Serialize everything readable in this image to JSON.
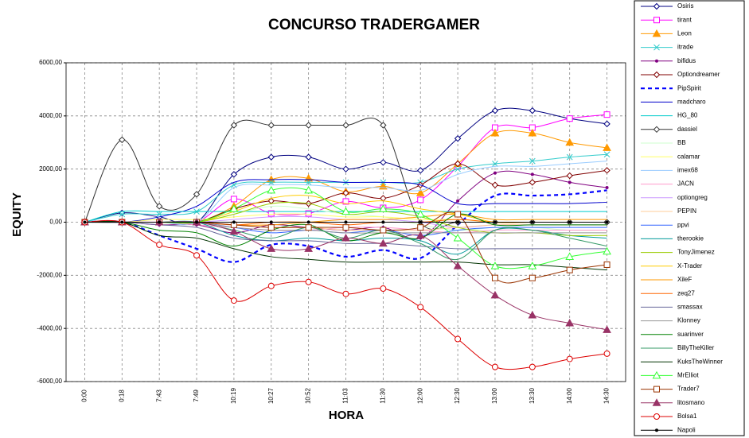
{
  "chart_data": {
    "type": "line",
    "title": "CONCURSO TRADERGAMER",
    "x_label": "HORA",
    "y_label": "EQUITY",
    "categories": [
      "0:00",
      "0:18",
      "7:43",
      "7:49",
      "10:19",
      "10:27",
      "10:52",
      "11:03",
      "11:30",
      "12:00",
      "12:30",
      "13:00",
      "13:30",
      "14:00",
      "14:30"
    ],
    "ylim": [
      -6000,
      6000
    ],
    "yticks": [
      {
        "value": -6000,
        "label": "-6000,00"
      },
      {
        "value": -4000,
        "label": "-4000,00"
      },
      {
        "value": -2000,
        "label": "-2000,00"
      },
      {
        "value": 0,
        "label": "0,00"
      },
      {
        "value": 2000,
        "label": "2000,00"
      },
      {
        "value": 4000,
        "label": "4000,00"
      },
      {
        "value": 6000,
        "label": "6000,00"
      }
    ],
    "grid": true,
    "smooth": true,
    "legend": "right",
    "series": [
      {
        "name": "Osiris",
        "color": "#000080",
        "marker": "diamond",
        "values": [
          0,
          350,
          200,
          0,
          1800,
          2450,
          2450,
          2000,
          2250,
          1950,
          3150,
          4200,
          4200,
          3900,
          3700
        ]
      },
      {
        "name": "tirant",
        "color": "#ff00ff",
        "marker": "square",
        "values": [
          0,
          0,
          0,
          0,
          870,
          330,
          330,
          780,
          540,
          840,
          2100,
          3560,
          3560,
          3900,
          4050
        ]
      },
      {
        "name": "Leon",
        "color": "#ff9900",
        "marker": "triangle",
        "values": [
          0,
          0,
          0,
          0,
          600,
          1600,
          1650,
          1150,
          1350,
          1100,
          2200,
          3350,
          3350,
          3000,
          2800
        ]
      },
      {
        "name": "itrade",
        "color": "#33cccc",
        "marker": "x",
        "values": [
          0,
          300,
          300,
          400,
          1400,
          1500,
          1500,
          1500,
          1500,
          1500,
          2000,
          2200,
          2300,
          2450,
          2550
        ]
      },
      {
        "name": "bifidus",
        "color": "#800080",
        "marker": "dot",
        "values": [
          0,
          0,
          -100,
          -100,
          -400,
          -100,
          -200,
          -300,
          -200,
          -600,
          800,
          1850,
          1800,
          1500,
          1300
        ]
      },
      {
        "name": "Optiondreamer",
        "color": "#800000",
        "marker": "diamond",
        "values": [
          0,
          0,
          0,
          0,
          500,
          800,
          700,
          1100,
          900,
          1400,
          2200,
          1400,
          1500,
          1750,
          1950
        ]
      },
      {
        "name": "PipSpirit",
        "color": "#0000ff",
        "dash": true,
        "values": [
          0,
          0,
          -500,
          -1000,
          -1500,
          -850,
          -900,
          -1300,
          -1050,
          -1350,
          -100,
          1000,
          1000,
          1050,
          1200
        ]
      },
      {
        "name": "madcharo",
        "color": "#0000cc",
        "values": [
          0,
          0,
          200,
          600,
          1500,
          1600,
          1600,
          1500,
          1500,
          1400,
          700,
          700,
          700,
          700,
          750
        ]
      },
      {
        "name": "HG_80",
        "color": "#00cccc",
        "values": [
          0,
          400,
          400,
          400,
          400,
          400,
          400,
          400,
          400,
          400,
          400,
          400,
          400,
          400,
          400
        ]
      },
      {
        "name": "dassiel",
        "color": "#333333",
        "marker": "diamond",
        "values": [
          0,
          3100,
          600,
          1050,
          3650,
          3650,
          3650,
          3650,
          3650,
          0,
          0,
          0,
          0,
          0,
          0
        ]
      },
      {
        "name": "BB",
        "color": "#ccffcc",
        "values": [
          0,
          0,
          0,
          0,
          300,
          600,
          500,
          300,
          200,
          -100,
          -300,
          -200,
          -200,
          -300,
          -300
        ]
      },
      {
        "name": "calamar",
        "color": "#ffff66",
        "values": [
          0,
          0,
          100,
          100,
          200,
          300,
          300,
          200,
          200,
          100,
          100,
          0,
          0,
          0,
          0
        ]
      },
      {
        "name": "imex68",
        "color": "#99ccff",
        "values": [
          0,
          0,
          0,
          0,
          1300,
          1400,
          1400,
          1300,
          1300,
          1200,
          1800,
          2100,
          2100,
          2200,
          2300
        ]
      },
      {
        "name": "JACN",
        "color": "#ff99cc",
        "values": [
          0,
          0,
          0,
          -100,
          -200,
          -300,
          -300,
          -200,
          -200,
          -300,
          -400,
          -300,
          -300,
          -300,
          -300
        ]
      },
      {
        "name": "optiongreg",
        "color": "#cc99ff",
        "values": [
          0,
          0,
          0,
          0,
          100,
          200,
          200,
          100,
          100,
          0,
          -200,
          -100,
          -100,
          -100,
          -100
        ]
      },
      {
        "name": "PEPIN",
        "color": "#ffcc99",
        "values": [
          0,
          0,
          0,
          0,
          -100,
          -200,
          -200,
          -300,
          -300,
          -300,
          -200,
          -100,
          -100,
          -100,
          -100
        ]
      },
      {
        "name": "ppvi",
        "color": "#3366ff",
        "values": [
          0,
          0,
          0,
          0,
          -200,
          -400,
          -300,
          -400,
          -300,
          -500,
          -300,
          -200,
          -200,
          -200,
          -200
        ]
      },
      {
        "name": "therookie",
        "color": "#009999",
        "values": [
          0,
          0,
          0,
          0,
          -500,
          -700,
          -600,
          -700,
          -600,
          -700,
          -1200,
          -300,
          -300,
          -500,
          -600
        ]
      },
      {
        "name": "TonyJimenez",
        "color": "#99cc00",
        "values": [
          0,
          0,
          0,
          0,
          300,
          700,
          700,
          300,
          400,
          200,
          -200,
          -400,
          -400,
          -500,
          -500
        ]
      },
      {
        "name": "X-Trader",
        "color": "#ffcc00",
        "values": [
          0,
          0,
          0,
          0,
          400,
          900,
          1000,
          700,
          800,
          500,
          300,
          0,
          0,
          0,
          0
        ]
      },
      {
        "name": "XileF",
        "color": "#ff9900",
        "values": [
          0,
          0,
          0,
          0,
          -100,
          -100,
          0,
          100,
          100,
          200,
          300,
          100,
          100,
          100,
          100
        ]
      },
      {
        "name": "zeq27",
        "color": "#ff6600",
        "values": [
          0,
          0,
          0,
          0,
          -100,
          0,
          0,
          -100,
          0,
          0,
          100,
          0,
          0,
          0,
          0
        ]
      },
      {
        "name": "smassax",
        "color": "#666699",
        "values": [
          0,
          0,
          -100,
          -200,
          -600,
          -700,
          -700,
          -800,
          -800,
          -900,
          -1000,
          -1000,
          -1000,
          -1000,
          -1000
        ]
      },
      {
        "name": "Klonney",
        "color": "#969696",
        "values": [
          0,
          0,
          0,
          0,
          -200,
          -300,
          -300,
          -400,
          -400,
          -400,
          -400,
          -400,
          -400,
          -400,
          -400
        ]
      },
      {
        "name": "suarinver",
        "color": "#008000",
        "values": [
          0,
          0,
          -300,
          -400,
          -900,
          -300,
          -100,
          -700,
          -400,
          -600,
          300,
          -100,
          -100,
          -100,
          -100
        ]
      },
      {
        "name": "BillyTheKiller",
        "color": "#339966",
        "values": [
          0,
          0,
          0,
          0,
          -300,
          -600,
          -200,
          -600,
          -300,
          -800,
          -1400,
          -300,
          -300,
          -600,
          -900
        ]
      },
      {
        "name": "KuksTheWinner",
        "color": "#003300",
        "values": [
          0,
          0,
          -500,
          -600,
          -1000,
          -1300,
          -1400,
          -1500,
          -1500,
          -1500,
          -1500,
          -1600,
          -1600,
          -1700,
          -1800
        ]
      },
      {
        "name": "MrElliot",
        "color": "#33ff33",
        "marker": "triangle-open",
        "values": [
          0,
          0,
          0,
          0,
          500,
          1200,
          1200,
          400,
          500,
          300,
          -600,
          -1650,
          -1650,
          -1300,
          -1100
        ]
      },
      {
        "name": "Trader7",
        "color": "#993300",
        "marker": "square",
        "values": [
          0,
          0,
          0,
          0,
          -100,
          -200,
          -200,
          -200,
          -300,
          -200,
          300,
          -2100,
          -2100,
          -1800,
          -1600
        ]
      },
      {
        "name": "litosmano",
        "color": "#993366",
        "marker": "triangle",
        "values": [
          0,
          0,
          0,
          0,
          -350,
          -1000,
          -1000,
          -600,
          -800,
          -500,
          -1650,
          -2750,
          -3500,
          -3800,
          -4050
        ]
      },
      {
        "name": "Bolsa1",
        "color": "#dd0000",
        "marker": "circle",
        "values": [
          0,
          0,
          -850,
          -1250,
          -2950,
          -2400,
          -2250,
          -2700,
          -2500,
          -3200,
          -4400,
          -5450,
          -5450,
          -5150,
          -4950
        ]
      },
      {
        "name": "Napoli",
        "color": "#000000",
        "marker": "dot",
        "values": [
          0,
          0,
          0,
          0,
          0,
          0,
          0,
          0,
          0,
          0,
          0,
          0,
          0,
          0,
          0
        ]
      }
    ]
  }
}
